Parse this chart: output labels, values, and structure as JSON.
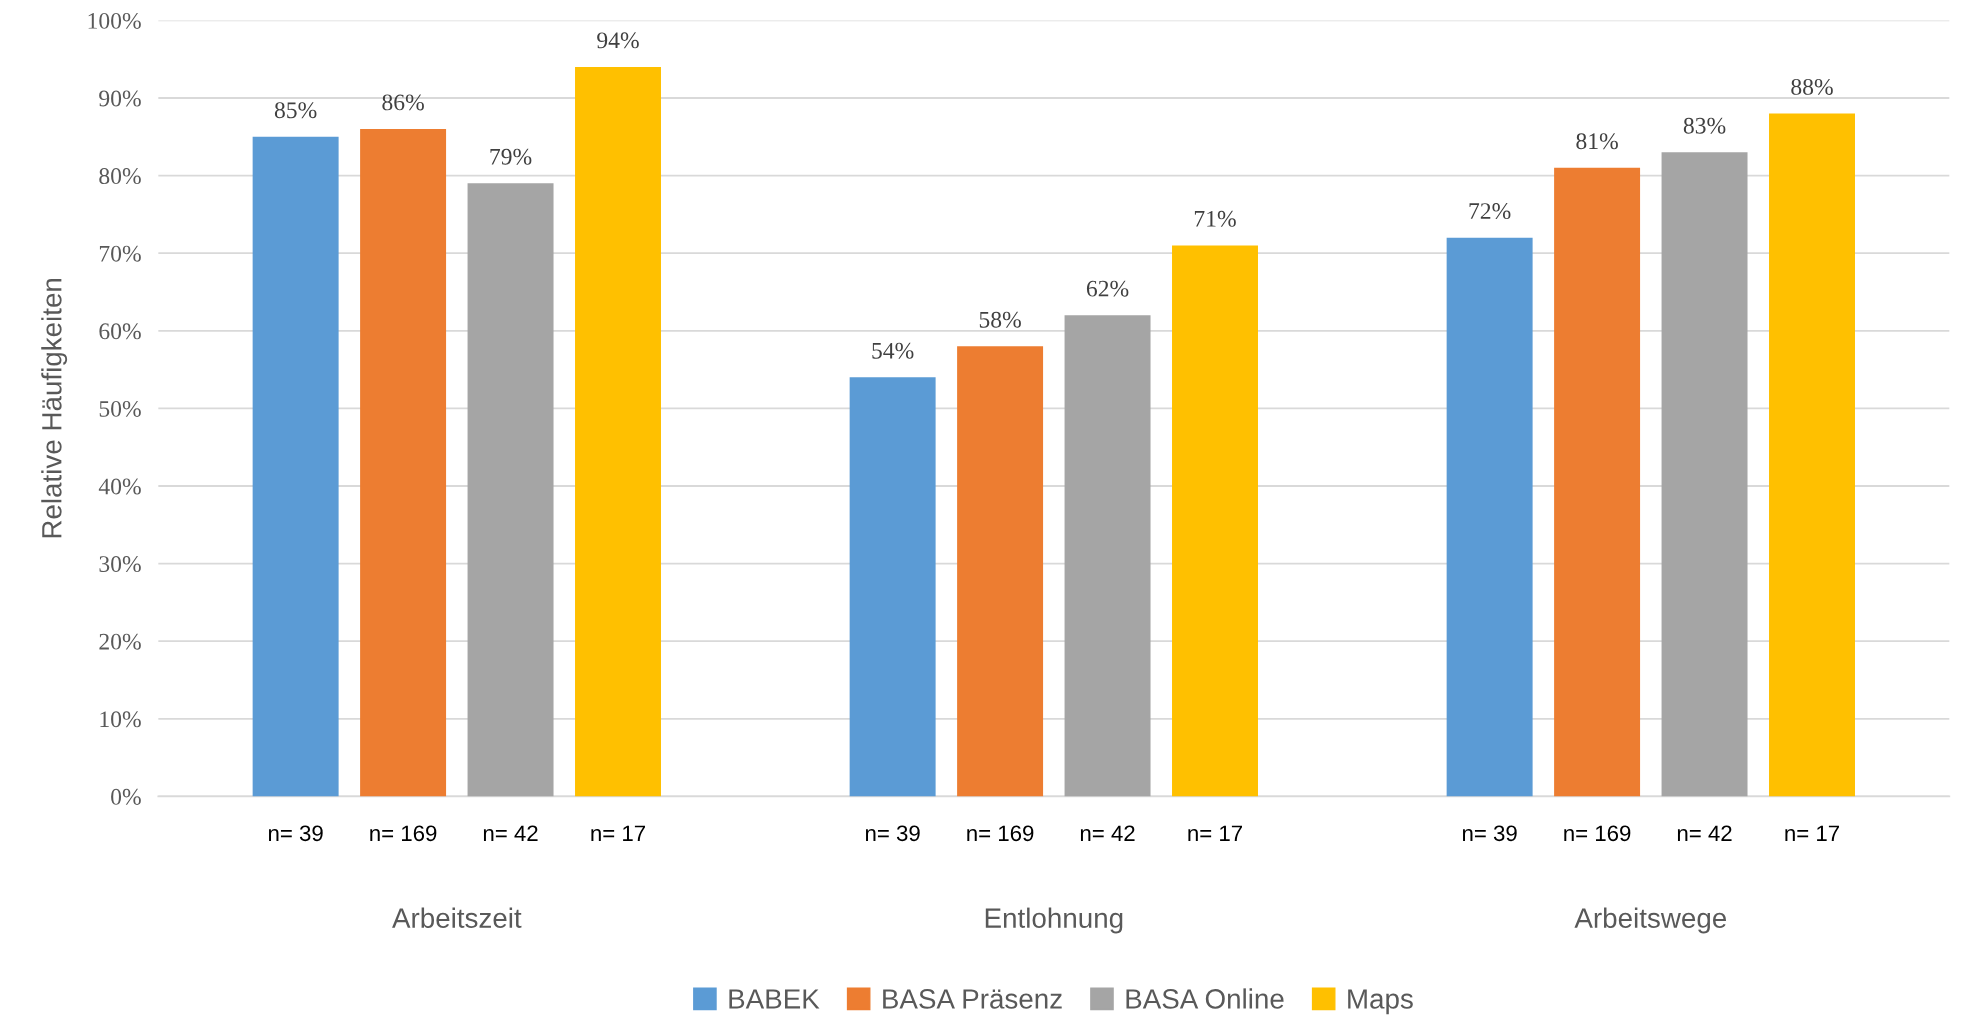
{
  "chart_data": {
    "type": "bar",
    "ylabel": "Relative Häufigkeiten",
    "categories": [
      "Arbeitszeit",
      "Entlohnung",
      "Arbeitswege"
    ],
    "series": [
      {
        "name": "BABEK",
        "color": "#5b9bd5",
        "values": [
          85,
          54,
          72
        ]
      },
      {
        "name": "BASA Präsenz",
        "color": "#ed7d31",
        "values": [
          86,
          58,
          81
        ]
      },
      {
        "name": "BASA Online",
        "color": "#a5a5a5",
        "values": [
          79,
          62,
          83
        ]
      },
      {
        "name": "Maps",
        "color": "#ffc000",
        "values": [
          94,
          71,
          88
        ]
      }
    ],
    "value_labels": [
      [
        "85%",
        "54%",
        "72%"
      ],
      [
        "86%",
        "58%",
        "81%"
      ],
      [
        "79%",
        "62%",
        "83%"
      ],
      [
        "94%",
        "71%",
        "88%"
      ]
    ],
    "annotations": [
      "n= 39",
      "n= 169",
      "n= 42",
      "n= 17",
      "n= 39",
      "n= 169",
      "n= 42",
      "n= 17",
      "n= 39",
      "n= 169",
      "n= 42",
      "n= 17"
    ],
    "ylim": [
      0,
      100
    ],
    "yticks": [
      {
        "value": 0,
        "label": "0%"
      },
      {
        "value": 10,
        "label": "10%"
      },
      {
        "value": 20,
        "label": "20%"
      },
      {
        "value": 30,
        "label": "30%"
      },
      {
        "value": 40,
        "label": "40%"
      },
      {
        "value": 50,
        "label": "50%"
      },
      {
        "value": 60,
        "label": "60%"
      },
      {
        "value": 70,
        "label": "70%"
      },
      {
        "value": 80,
        "label": "80%"
      },
      {
        "value": 90,
        "label": "90%"
      },
      {
        "value": 100,
        "label": "100%"
      }
    ],
    "grid": "y",
    "legend": "bottom"
  }
}
